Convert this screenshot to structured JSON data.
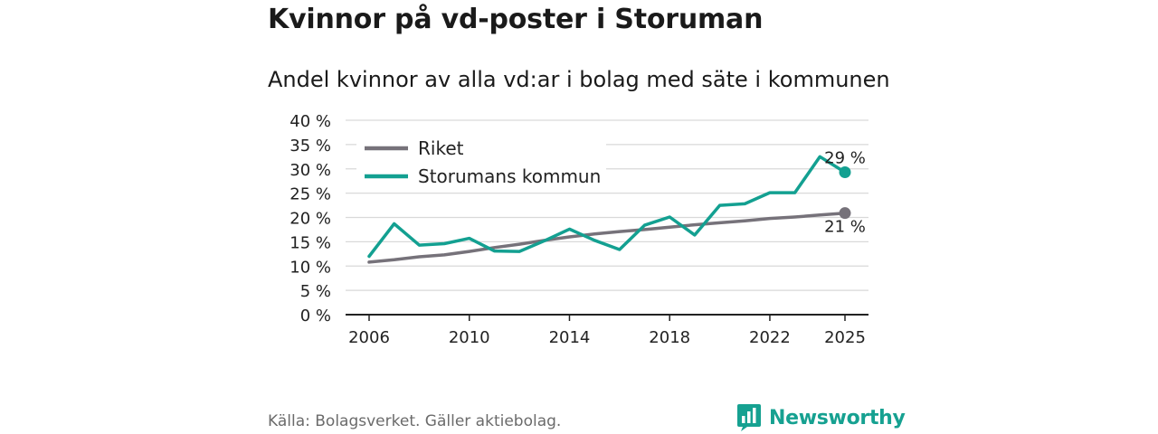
{
  "header": {
    "title": "Kvinnor på vd-poster i Storuman",
    "subtitle": "Andel kvinnor av alla vd:ar i bolag med säte i kommunen"
  },
  "footer": {
    "source": "Källa: Bolagsverket. Gäller aktiebolag.",
    "brand": "Newsworthy"
  },
  "colors": {
    "riket": "#76727a",
    "kommun": "#13a091",
    "grid": "#d9d9d9",
    "axis": "#222222",
    "brand": "#16a191"
  },
  "chart_data": {
    "type": "line",
    "title": "Andel kvinnor av alla vd:ar i bolag med säte i kommunen",
    "xlabel": "",
    "ylabel": "",
    "x": [
      2006,
      2007,
      2008,
      2009,
      2010,
      2011,
      2012,
      2013,
      2014,
      2015,
      2016,
      2017,
      2018,
      2019,
      2020,
      2021,
      2022,
      2023,
      2024,
      2025
    ],
    "xticks": [
      "2006",
      "2010",
      "2014",
      "2018",
      "2022",
      "2025"
    ],
    "ylim": [
      0,
      40
    ],
    "yticks": [
      "0 %",
      "5 %",
      "10 %",
      "15 %",
      "20 %",
      "25 %",
      "30 %",
      "35 %",
      "40 %"
    ],
    "grid": true,
    "legend_position": "top-left",
    "series": [
      {
        "name": "Riket",
        "color": "#76727a",
        "values": [
          10.8,
          11.3,
          11.9,
          12.3,
          13.0,
          13.8,
          14.5,
          15.3,
          16.0,
          16.6,
          17.1,
          17.5,
          18.0,
          18.5,
          18.9,
          19.3,
          19.8,
          20.1,
          20.5,
          20.9
        ],
        "end_label": "21 %"
      },
      {
        "name": "Storumans kommun",
        "color": "#13a091",
        "values": [
          12.0,
          18.7,
          14.3,
          14.6,
          15.7,
          13.1,
          13.0,
          15.2,
          17.6,
          15.3,
          13.4,
          18.4,
          20.1,
          16.4,
          22.5,
          22.8,
          25.1,
          25.1,
          32.5,
          29.3
        ],
        "end_label": "29 %"
      }
    ]
  }
}
